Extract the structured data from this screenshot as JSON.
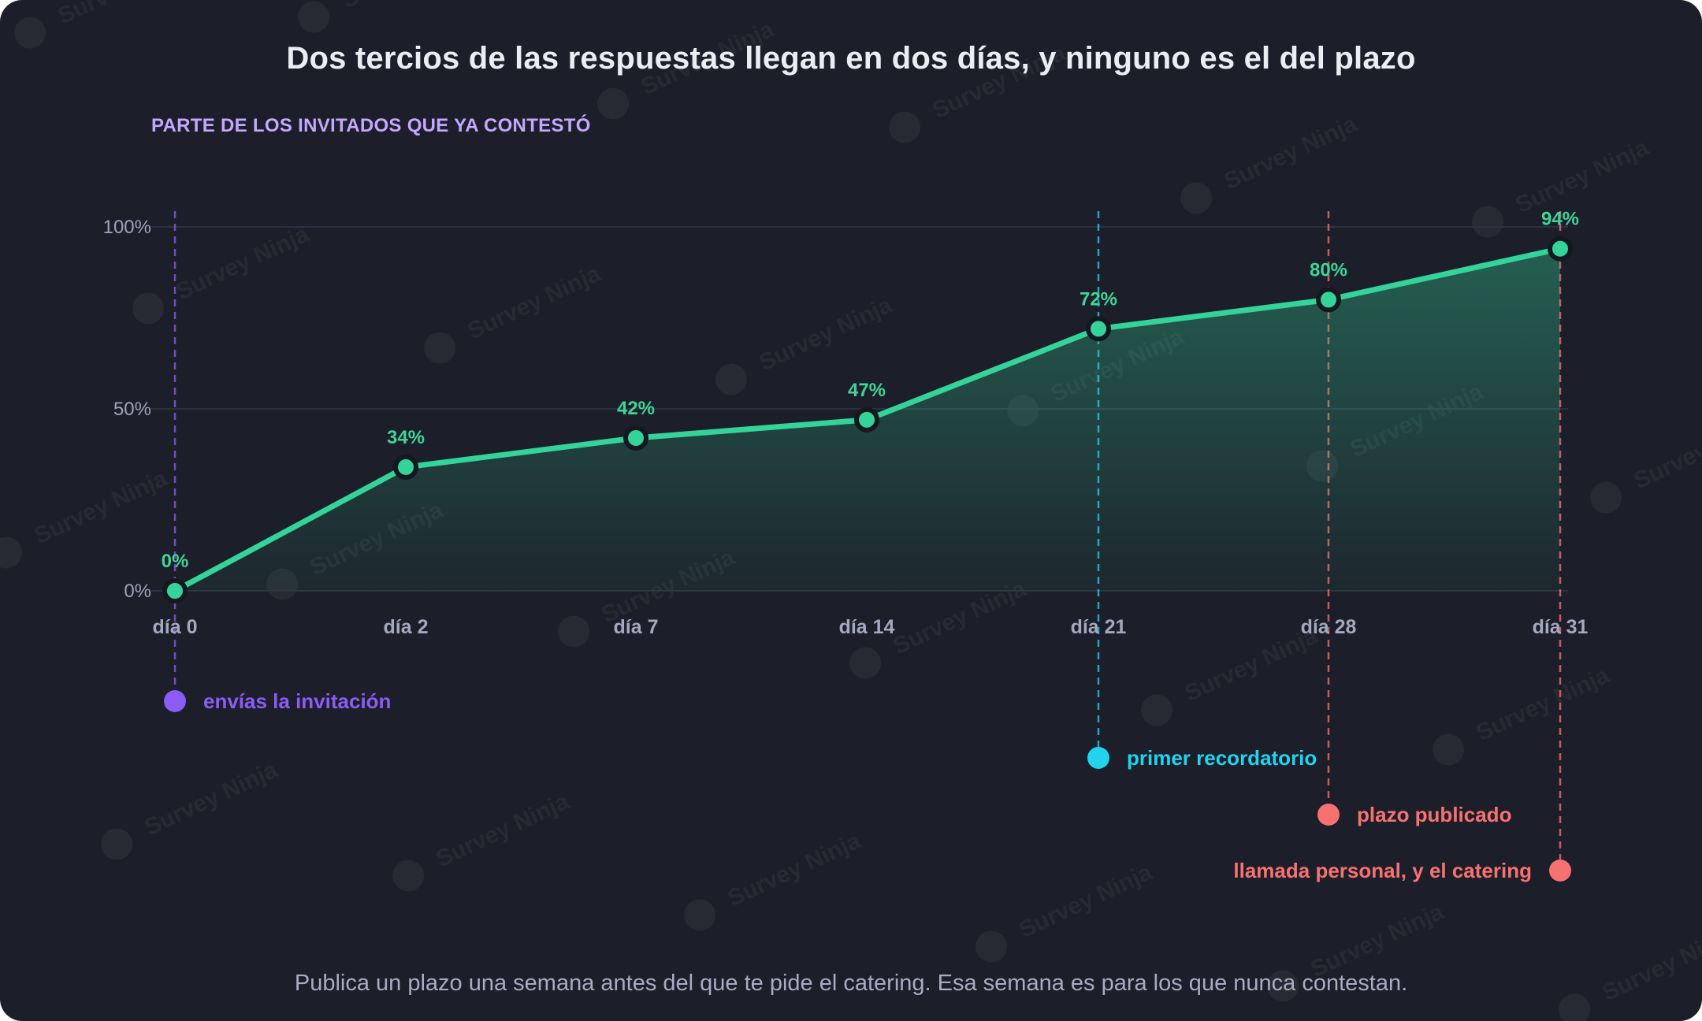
{
  "title": "Dos tercios de las respuestas llegan en dos días, y ninguno es el del plazo",
  "footer": "Publica un plazo una semana antes del que te pide el catering. Esa semana es para los que nunca contestan.",
  "watermark": "Survey Ninja",
  "colors": {
    "background": "#1c1e29",
    "line": "#34d399",
    "label": "#3ed598",
    "purple": "#8b5cf6",
    "cyan": "#22d3ee",
    "coral": "#f87171",
    "grid": "#2c3040"
  },
  "chart_data": {
    "type": "line",
    "ylabel": "PARTE DE LOS INVITADOS QUE YA CONTESTÓ",
    "ylim": [
      0,
      100
    ],
    "yticks": [
      0,
      50,
      100
    ],
    "ytick_labels": [
      "0%",
      "50%",
      "100%"
    ],
    "categories": [
      "día 0",
      "día 2",
      "día 7",
      "día 14",
      "día 21",
      "día 28",
      "día 31"
    ],
    "values": [
      0,
      34,
      42,
      47,
      72,
      80,
      94
    ],
    "value_labels": [
      "0%",
      "34%",
      "42%",
      "47%",
      "72%",
      "80%",
      "94%"
    ],
    "area_fill": true,
    "grid": true,
    "annotations": [
      {
        "label": "envías la invitación",
        "category_index": 0,
        "color": "#8b5cf6",
        "text_side": "right"
      },
      {
        "label": "primer recordatorio",
        "category_index": 4,
        "color": "#22d3ee",
        "text_side": "right"
      },
      {
        "label": "plazo publicado",
        "category_index": 5,
        "color": "#f87171",
        "text_side": "right"
      },
      {
        "label": "llamada personal, y el catering",
        "category_index": 6,
        "color": "#f87171",
        "text_side": "left"
      }
    ]
  }
}
